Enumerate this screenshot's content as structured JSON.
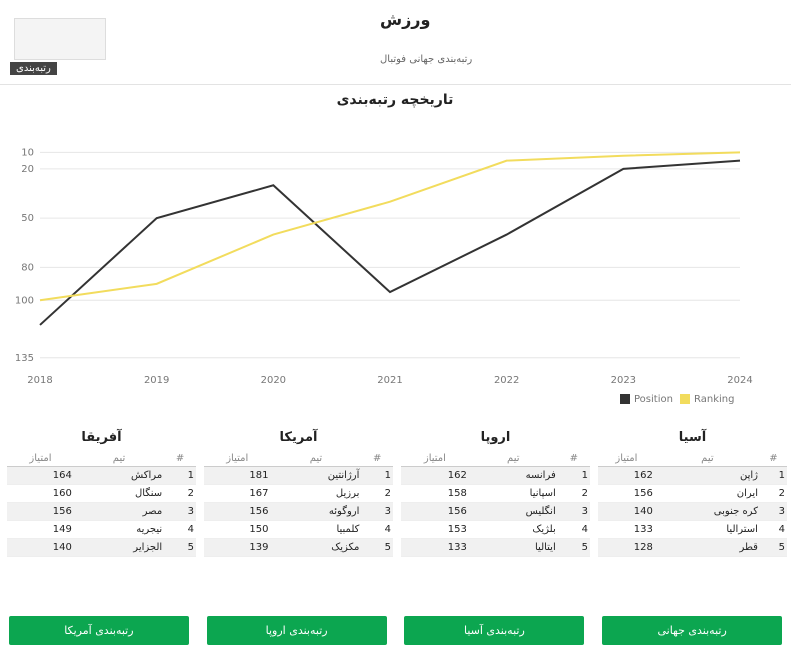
{
  "header": {
    "title": "ورزش",
    "subtitle": "رتبه‌بندی جهانی فوتبال",
    "crumb": "رتبه‌بندی"
  },
  "chart_data": {
    "type": "line",
    "title": "تاریخچه رتبه‌بندی",
    "x": [
      "2018",
      "2019",
      "2020",
      "2021",
      "2022",
      "2023",
      "2024"
    ],
    "series": [
      {
        "name": "Position",
        "color": "#333333",
        "values": [
          115,
          50,
          30,
          95,
          60,
          20,
          15
        ]
      },
      {
        "name": "Ranking",
        "color": "#f2dc5d",
        "values": [
          100,
          90,
          60,
          40,
          15,
          12,
          10
        ]
      }
    ],
    "ylim": [
      140,
      0
    ],
    "yticks": [
      10,
      20,
      50,
      80,
      100,
      135
    ],
    "grid": true
  },
  "tables": [
    {
      "title": "آسیا",
      "headers": [
        "#",
        "تیم",
        "امتیاز"
      ],
      "rows": [
        [
          "1",
          "ژاپن",
          "162"
        ],
        [
          "2",
          "ایران",
          "156"
        ],
        [
          "3",
          "کره جنوبی",
          "140"
        ],
        [
          "4",
          "استرالیا",
          "133"
        ],
        [
          "5",
          "قطر",
          "128"
        ]
      ]
    },
    {
      "title": "اروپا",
      "headers": [
        "#",
        "تیم",
        "امتیاز"
      ],
      "rows": [
        [
          "1",
          "فرانسه",
          "162"
        ],
        [
          "2",
          "اسپانیا",
          "158"
        ],
        [
          "3",
          "انگلیس",
          "156"
        ],
        [
          "4",
          "بلژیک",
          "153"
        ],
        [
          "5",
          "ایتالیا",
          "133"
        ]
      ]
    },
    {
      "title": "آمریکا",
      "headers": [
        "#",
        "تیم",
        "امتیاز"
      ],
      "rows": [
        [
          "1",
          "آرژانتین",
          "181"
        ],
        [
          "2",
          "برزیل",
          "167"
        ],
        [
          "3",
          "اروگوئه",
          "156"
        ],
        [
          "4",
          "کلمبیا",
          "150"
        ],
        [
          "5",
          "مکزیک",
          "139"
        ]
      ]
    },
    {
      "title": "آفریقا",
      "headers": [
        "#",
        "تیم",
        "امتیاز"
      ],
      "rows": [
        [
          "1",
          "مراکش",
          "164"
        ],
        [
          "2",
          "سنگال",
          "160"
        ],
        [
          "3",
          "مصر",
          "156"
        ],
        [
          "4",
          "نیجریه",
          "149"
        ],
        [
          "5",
          "الجزایر",
          "140"
        ]
      ]
    }
  ],
  "buttons": [
    "رتبه‌بندی جهانی",
    "رتبه‌بندی آسیا",
    "رتبه‌بندی اروپا",
    "رتبه‌بندی آمریکا"
  ]
}
